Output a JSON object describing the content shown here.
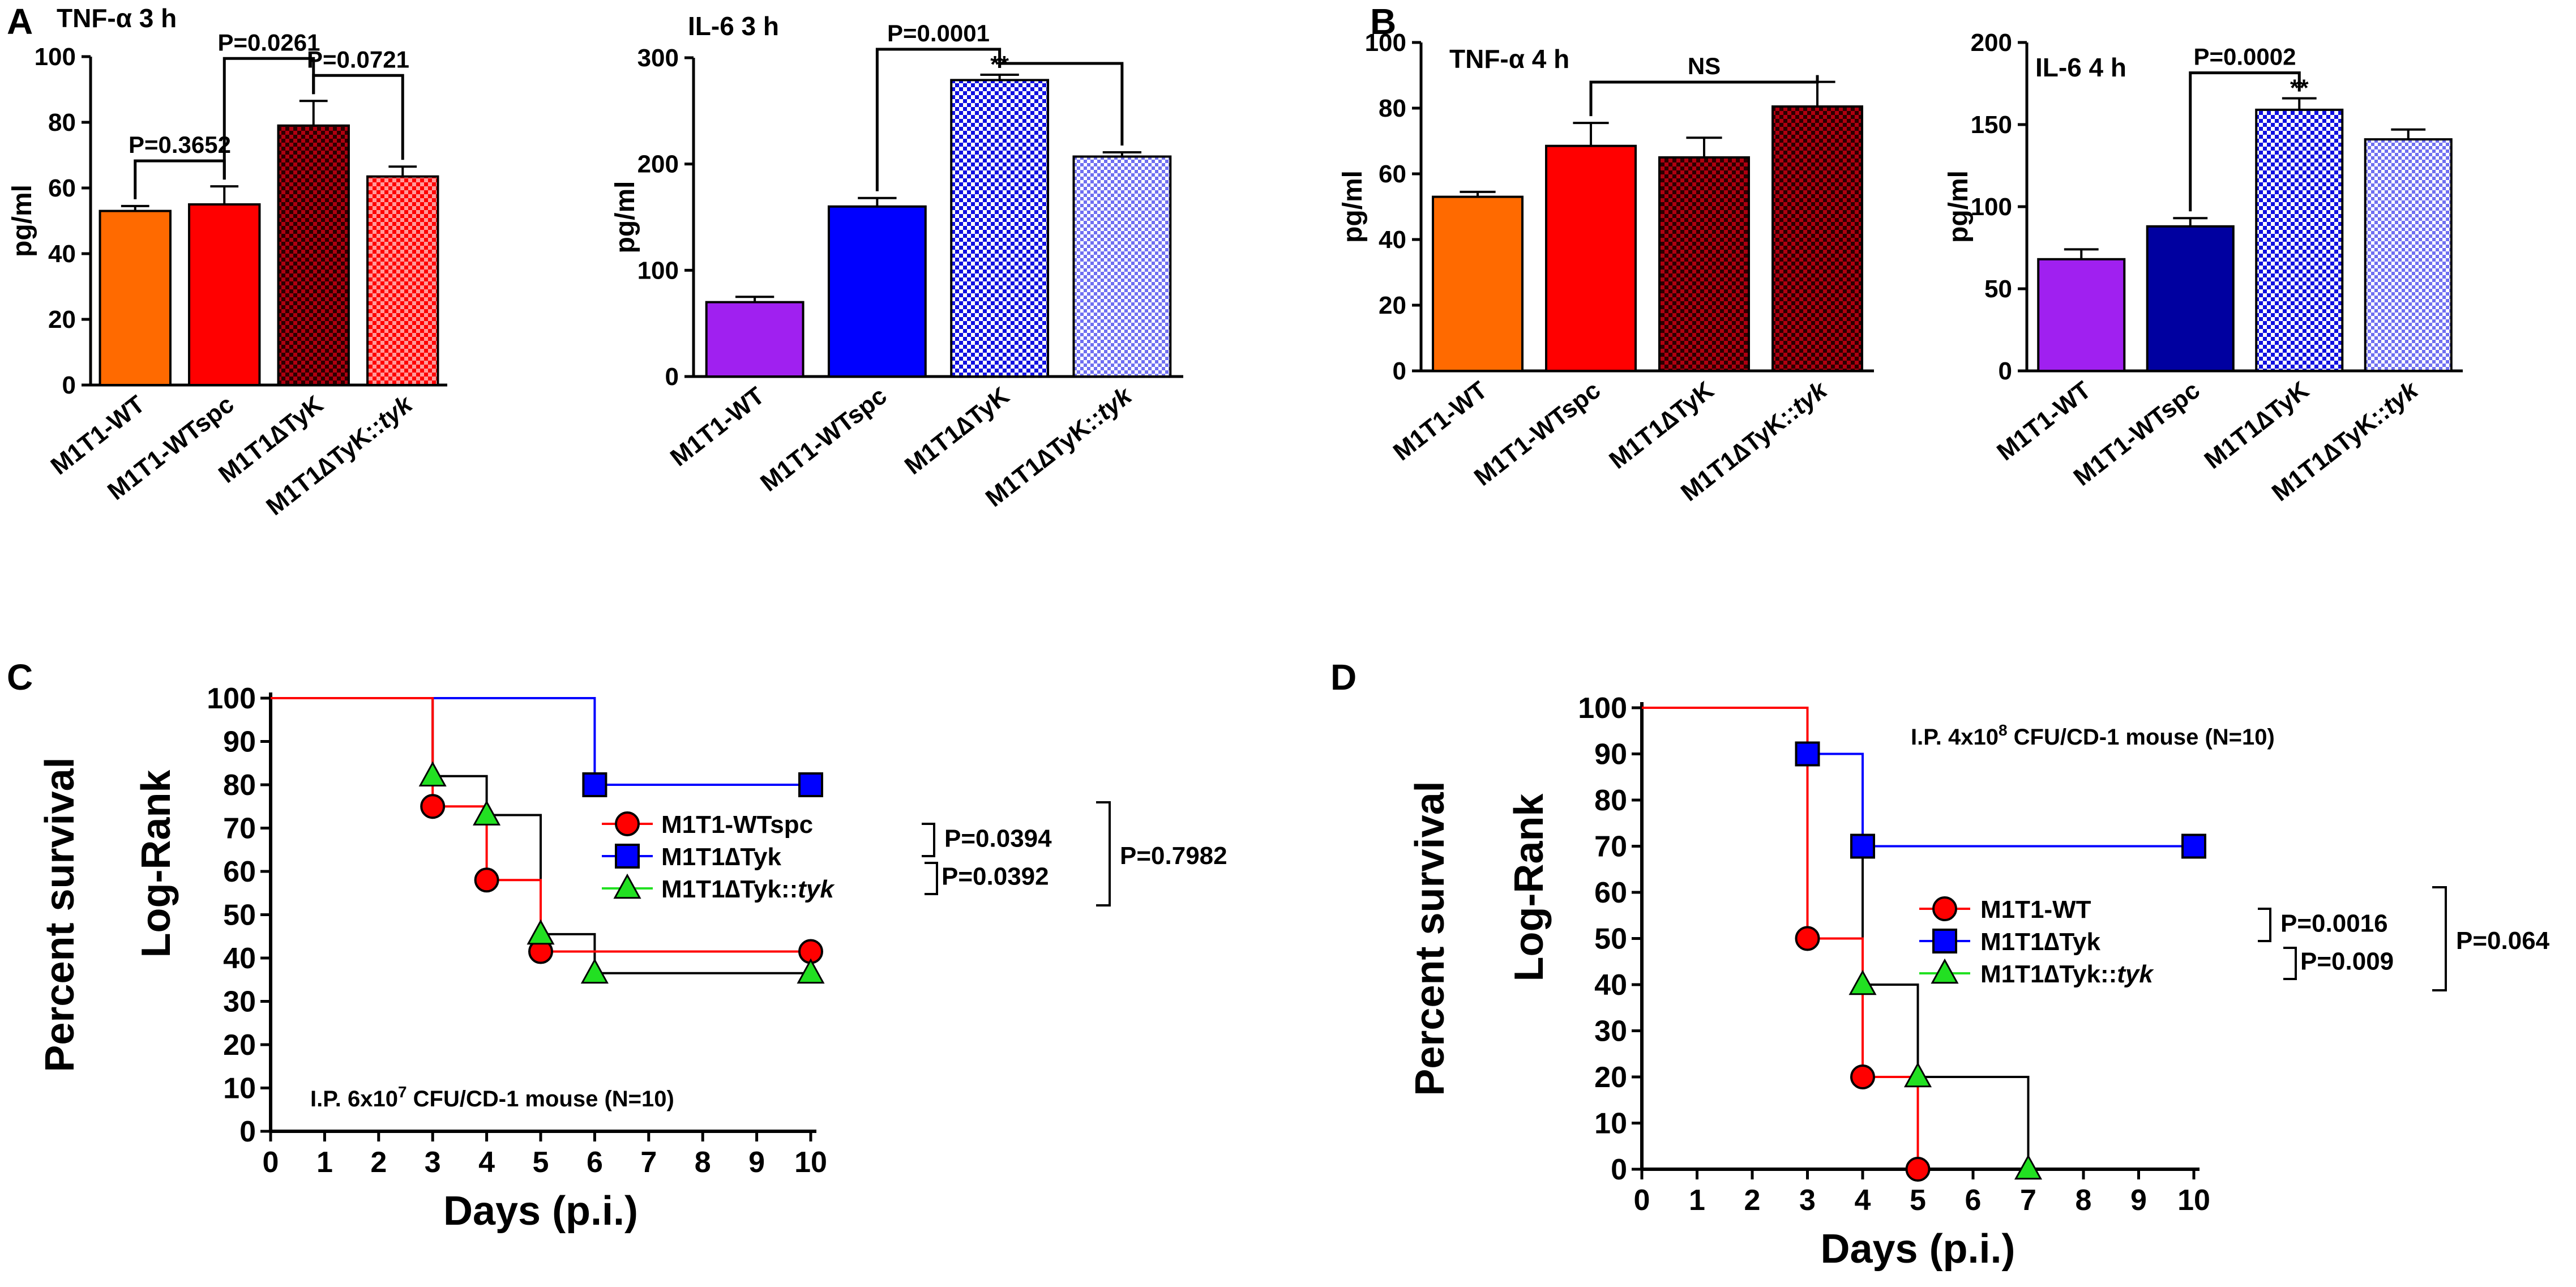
{
  "figure": {
    "colors": {
      "orange": "#ff6a00",
      "red": "#ff0000",
      "darkred": "#b00010",
      "purple": "#a020f0",
      "blue": "#0000ff",
      "navy": "#0000a0",
      "green": "#22e022",
      "black": "#000000"
    },
    "chart_data": [
      {
        "id": "A1",
        "panel_label": "A",
        "type": "bar",
        "title": "TNF-α 3 h",
        "ylabel": "pg/ml",
        "ylim": [
          0,
          100
        ],
        "yticks": [
          "0",
          "20",
          "40",
          "60",
          "80",
          "100"
        ],
        "categories": [
          "M1T1-WT",
          "M1T1-WTspc",
          "M1T1∆TyK",
          "M1T1∆TyK::"
        ],
        "category_italic_suffix": [
          "",
          "",
          "",
          "tyk"
        ],
        "values": [
          53,
          55,
          79,
          63.5
        ],
        "errors": [
          1.5,
          5.5,
          7.5,
          3
        ],
        "fills": [
          "orange",
          "red",
          "check-darkred",
          "check-red"
        ],
        "brackets": [
          {
            "from": 0,
            "to": 1,
            "label": "P=0.3652"
          },
          {
            "from": 1,
            "to": 2,
            "label": "P=0.0261"
          },
          {
            "from": 2,
            "to": 3,
            "label": "P=0.0721"
          }
        ],
        "stars": []
      },
      {
        "id": "A2",
        "type": "bar",
        "title": "IL-6 3 h",
        "ylabel": "pg/ml",
        "ylim": [
          0,
          300
        ],
        "yticks": [
          "0",
          "100",
          "200",
          "300"
        ],
        "categories": [
          "M1T1-WT",
          "M1T1-WTspc",
          "M1T1∆TyK",
          "M1T1∆TyK::"
        ],
        "category_italic_suffix": [
          "",
          "",
          "",
          "tyk"
        ],
        "values": [
          70,
          160,
          279,
          207
        ],
        "errors": [
          5,
          8,
          5,
          4
        ],
        "fills": [
          "purple",
          "blue",
          "check-blue",
          "check-lightblue"
        ],
        "brackets": [
          {
            "from": 1,
            "to": 2,
            "label": "P=0.0001"
          },
          {
            "from": 2,
            "to": 3,
            "label": ""
          }
        ],
        "stars": [
          {
            "index": 2,
            "label": "**"
          }
        ]
      },
      {
        "id": "B1",
        "panel_label": "B",
        "type": "bar",
        "title": "TNF-α 4 h",
        "ylabel": "pg/ml",
        "ylim": [
          0,
          100
        ],
        "yticks": [
          "0",
          "20",
          "40",
          "60",
          "80",
          "100"
        ],
        "categories": [
          "M1T1-WT",
          "M1T1-WTspc",
          "M1T1∆TyK",
          "M1T1∆TyK::"
        ],
        "category_italic_suffix": [
          "",
          "",
          "",
          "tyk"
        ],
        "values": [
          53,
          68.5,
          65,
          80.5
        ],
        "errors": [
          1.5,
          7,
          6,
          7.5
        ],
        "fills": [
          "orange",
          "red",
          "check-darkred",
          "check-darkred"
        ],
        "brackets": [
          {
            "from": 1,
            "to": 3,
            "label": "NS"
          }
        ],
        "stars": []
      },
      {
        "id": "B2",
        "type": "bar",
        "title": "IL-6 4 h",
        "ylabel": "pg/ml",
        "ylim": [
          0,
          200
        ],
        "yticks": [
          "0",
          "50",
          "100",
          "150",
          "200"
        ],
        "categories": [
          "M1T1-WT",
          "M1T1-WTspc",
          "M1T1∆TyK",
          "M1T1∆TyK::"
        ],
        "category_italic_suffix": [
          "",
          "",
          "",
          "tyk"
        ],
        "values": [
          68,
          88,
          159,
          141
        ],
        "errors": [
          6,
          5,
          7,
          6
        ],
        "fills": [
          "purple",
          "navy",
          "check-blue",
          "check-lightblue"
        ],
        "brackets": [
          {
            "from": 1,
            "to": 2,
            "label": "P=0.0002"
          }
        ],
        "stars": [
          {
            "index": 2,
            "label": "**"
          }
        ]
      },
      {
        "id": "C",
        "panel_label": "C",
        "type": "line",
        "subtype": "kaplan-meier",
        "ylabel": "Percent survival",
        "ylabel2": "Log-Rank",
        "xlabel": "Days (p.i.)",
        "xlim": [
          0,
          10
        ],
        "ylim": [
          0,
          100
        ],
        "xticks": [
          "0",
          "1",
          "2",
          "3",
          "4",
          "5",
          "6",
          "7",
          "8",
          "9",
          "10"
        ],
        "yticks": [
          "0",
          "10",
          "20",
          "30",
          "40",
          "50",
          "60",
          "70",
          "80",
          "90",
          "100"
        ],
        "annotation": "I.P. 6x10",
        "annotation_sup": "7",
        "annotation_tail": " CFU/CD-1 mouse (N=10)",
        "series": [
          {
            "name": "M1T1-WTspc",
            "name_italic": "",
            "color": "red",
            "marker": "circle",
            "steps": [
              [
                0,
                100
              ],
              [
                3,
                75
              ],
              [
                4,
                58
              ],
              [
                5,
                41.5
              ],
              [
                10,
                41.5
              ]
            ],
            "points": [
              [
                3,
                75
              ],
              [
                4,
                58
              ],
              [
                5,
                41.5
              ],
              [
                10,
                41.5
              ]
            ]
          },
          {
            "name": "M1T1∆Tyk",
            "name_italic": "",
            "color": "blue",
            "marker": "square",
            "steps": [
              [
                0,
                100
              ],
              [
                6,
                80
              ],
              [
                10,
                80
              ]
            ],
            "points": [
              [
                6,
                80
              ],
              [
                10,
                80
              ]
            ]
          },
          {
            "name": "M1T1∆Tyk::",
            "name_italic": "tyk",
            "color": "green",
            "marker": "triangle",
            "steps": [
              [
                0,
                100
              ],
              [
                3,
                82
              ],
              [
                4,
                73
              ],
              [
                5,
                45.5
              ],
              [
                6,
                36.5
              ],
              [
                10,
                36.5
              ]
            ],
            "points": [
              [
                3,
                82
              ],
              [
                4,
                73
              ],
              [
                5,
                45.5
              ],
              [
                6,
                36.5
              ],
              [
                10,
                36.5
              ]
            ]
          }
        ],
        "pvalues": [
          {
            "between": [
              0,
              1
            ],
            "label": "P=0.0394"
          },
          {
            "between": [
              1,
              2
            ],
            "label": "P=0.0392"
          },
          {
            "between": [
              0,
              2
            ],
            "label": "P=0.7982"
          }
        ]
      },
      {
        "id": "D",
        "panel_label": "D",
        "type": "line",
        "subtype": "kaplan-meier",
        "ylabel": "Percent survival",
        "ylabel2": "Log-Rank",
        "xlabel": "Days (p.i.)",
        "xlim": [
          0,
          10
        ],
        "ylim": [
          0,
          100
        ],
        "xticks": [
          "0",
          "1",
          "2",
          "3",
          "4",
          "5",
          "6",
          "7",
          "8",
          "9",
          "10"
        ],
        "yticks": [
          "0",
          "10",
          "20",
          "30",
          "40",
          "50",
          "60",
          "70",
          "80",
          "90",
          "100"
        ],
        "annotation": "I.P. 4x10",
        "annotation_sup": "8",
        "annotation_tail": " CFU/CD-1 mouse (N=10)",
        "series": [
          {
            "name": "M1T1-WT",
            "name_italic": "",
            "color": "red",
            "marker": "circle",
            "steps": [
              [
                0,
                100
              ],
              [
                3,
                50
              ],
              [
                4,
                20
              ],
              [
                5,
                0
              ]
            ],
            "points": [
              [
                3,
                50
              ],
              [
                4,
                20
              ],
              [
                5,
                0
              ]
            ]
          },
          {
            "name": "M1T1∆Tyk",
            "name_italic": "",
            "color": "blue",
            "marker": "square",
            "steps": [
              [
                0,
                100
              ],
              [
                3,
                90
              ],
              [
                4,
                70
              ],
              [
                10,
                70
              ]
            ],
            "points": [
              [
                3,
                90
              ],
              [
                4,
                70
              ],
              [
                10,
                70
              ]
            ]
          },
          {
            "name": "M1T1∆Tyk::",
            "name_italic": "tyk",
            "color": "green",
            "marker": "triangle",
            "steps": [
              [
                0,
                100
              ],
              [
                3,
                90
              ],
              [
                4,
                40
              ],
              [
                5,
                20
              ],
              [
                7,
                0
              ]
            ],
            "points": [
              [
                4,
                40
              ],
              [
                5,
                20
              ],
              [
                7,
                0
              ]
            ]
          }
        ],
        "pvalues": [
          {
            "between": [
              0,
              1
            ],
            "label": "P=0.0016"
          },
          {
            "between": [
              1,
              2
            ],
            "label": "P=0.009"
          },
          {
            "between": [
              0,
              2
            ],
            "label": "P=0.064"
          }
        ]
      }
    ]
  }
}
